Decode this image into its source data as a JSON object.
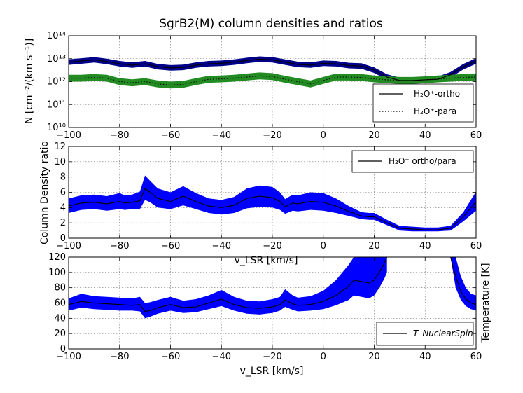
{
  "chart_data": [
    {
      "type": "line",
      "title": "SgrB2(M) column densities and ratios",
      "xlabel": "",
      "ylabel": "N [cm⁻²/(km s⁻¹)]",
      "yscale": "log",
      "xlim": [
        -100,
        60
      ],
      "ylim_exponents": [
        10,
        14
      ],
      "xticks": [
        -100,
        -80,
        -60,
        -40,
        -20,
        0,
        20,
        40,
        60
      ],
      "yticks": [
        "10¹⁰",
        "10¹¹",
        "10¹²",
        "10¹³",
        "10¹⁴"
      ],
      "legend_position": "lower-right",
      "series": [
        {
          "name": "H₂O⁺-ortho",
          "line_style": "solid",
          "band_color": "#00008b",
          "band_width_dex": 0.12,
          "x": [
            -100,
            -95,
            -90,
            -85,
            -80,
            -75,
            -70,
            -65,
            -60,
            -55,
            -50,
            -45,
            -40,
            -35,
            -30,
            -25,
            -20,
            -15,
            -10,
            -5,
            0,
            5,
            10,
            15,
            20,
            25,
            30,
            35,
            40,
            45,
            50,
            55,
            60
          ],
          "log10_values": [
            12.85,
            12.9,
            12.95,
            12.88,
            12.78,
            12.72,
            12.78,
            12.65,
            12.6,
            12.62,
            12.72,
            12.78,
            12.8,
            12.85,
            12.92,
            12.98,
            12.95,
            12.85,
            12.75,
            12.72,
            12.8,
            12.78,
            12.7,
            12.68,
            12.5,
            12.2,
            12.05,
            12.05,
            12.08,
            12.1,
            12.3,
            12.65,
            12.9
          ]
        },
        {
          "name": "H₂O⁺-para",
          "line_style": "dotted",
          "band_color": "#228b22",
          "band_width_dex": 0.15,
          "x": [
            -100,
            -95,
            -90,
            -85,
            -80,
            -75,
            -70,
            -65,
            -60,
            -55,
            -50,
            -45,
            -40,
            -35,
            -30,
            -25,
            -20,
            -15,
            -10,
            -5,
            0,
            5,
            10,
            15,
            20,
            25,
            30,
            35,
            40,
            45,
            50,
            55,
            60
          ],
          "log10_values": [
            12.15,
            12.15,
            12.18,
            12.15,
            12.0,
            11.95,
            12.0,
            11.9,
            11.85,
            11.88,
            12.0,
            12.1,
            12.12,
            12.15,
            12.2,
            12.25,
            12.22,
            12.1,
            12.0,
            11.9,
            12.05,
            12.2,
            12.2,
            12.18,
            12.12,
            12.08,
            12.05,
            12.05,
            12.08,
            12.12,
            12.15,
            12.18,
            12.2
          ]
        }
      ]
    },
    {
      "type": "line",
      "title": "",
      "xlabel": "v_LSR [km/s]",
      "ylabel": "Column Density ratio",
      "xlim": [
        -100,
        60
      ],
      "ylim": [
        0,
        12
      ],
      "xticks": [
        -100,
        -80,
        -60,
        -40,
        -20,
        0,
        20,
        40,
        60
      ],
      "yticks": [
        0,
        2,
        4,
        6,
        8,
        10,
        12
      ],
      "legend_position": "top-right",
      "series": [
        {
          "name": "H₂O⁺ ortho/para",
          "band_color": "#0000ff",
          "x": [
            -100,
            -95,
            -90,
            -85,
            -80,
            -78,
            -75,
            -72,
            -70,
            -68,
            -65,
            -60,
            -55,
            -50,
            -45,
            -40,
            -35,
            -30,
            -25,
            -20,
            -17,
            -15,
            -12,
            -10,
            -5,
            0,
            5,
            10,
            15,
            18,
            20,
            25,
            30,
            35,
            40,
            45,
            50,
            55,
            60
          ],
          "values": [
            4.2,
            4.6,
            4.7,
            4.5,
            4.8,
            4.6,
            4.7,
            4.9,
            6.5,
            6.0,
            5.2,
            4.8,
            5.5,
            4.8,
            4.2,
            4.0,
            4.3,
            5.2,
            5.5,
            5.3,
            4.8,
            4.1,
            4.6,
            4.5,
            4.8,
            4.7,
            4.2,
            3.5,
            2.9,
            2.8,
            2.8,
            2.0,
            1.3,
            1.2,
            1.1,
            1.1,
            1.3,
            2.8,
            4.8
          ],
          "lower": [
            3.3,
            3.7,
            3.8,
            3.6,
            3.8,
            3.7,
            3.8,
            3.8,
            5.0,
            4.7,
            4.0,
            3.8,
            4.3,
            3.8,
            3.3,
            3.1,
            3.3,
            3.9,
            4.1,
            4.0,
            3.7,
            3.2,
            3.6,
            3.5,
            3.7,
            3.6,
            3.3,
            2.9,
            2.5,
            2.4,
            2.4,
            1.7,
            1.0,
            0.9,
            0.9,
            0.9,
            1.0,
            2.2,
            3.6
          ],
          "upper": [
            5.2,
            5.6,
            5.7,
            5.5,
            5.9,
            5.6,
            5.7,
            6.1,
            8.2,
            7.5,
            6.5,
            6.0,
            6.8,
            5.9,
            5.2,
            5.0,
            5.4,
            6.5,
            6.9,
            6.7,
            6.0,
            5.1,
            5.7,
            5.6,
            6.0,
            5.9,
            5.2,
            4.2,
            3.4,
            3.3,
            3.3,
            2.4,
            1.6,
            1.5,
            1.4,
            1.4,
            1.6,
            3.4,
            6.1
          ]
        }
      ]
    },
    {
      "type": "line",
      "title": "",
      "xlabel": "v_LSR [km/s]",
      "ylabel": "Temperature [K]",
      "ylabel_side": "right",
      "xlim": [
        -100,
        60
      ],
      "ylim": [
        0,
        120
      ],
      "xticks": [
        -100,
        -80,
        -60,
        -40,
        -20,
        0,
        20,
        40,
        60
      ],
      "yticks": [
        0,
        20,
        40,
        60,
        80,
        100,
        120
      ],
      "legend_position": "lower-right",
      "series": [
        {
          "name": "T_NuclearSpin",
          "band_color": "#0000ff",
          "segments": [
            {
              "x": [
                -100,
                -95,
                -90,
                -85,
                -80,
                -75,
                -72,
                -70,
                -68,
                -65,
                -60,
                -55,
                -50,
                -45,
                -40,
                -35,
                -30,
                -25,
                -20,
                -17,
                -15,
                -12,
                -10,
                -5,
                0,
                5,
                10,
                12,
                15,
                18,
                20,
                22,
                24,
                25
              ],
              "values": [
                58,
                62,
                60,
                59,
                58,
                57,
                58,
                49,
                50,
                54,
                58,
                54,
                55,
                60,
                65,
                58,
                54,
                53,
                55,
                58,
                64,
                59,
                57,
                58,
                62,
                70,
                82,
                90,
                88,
                86,
                90,
                100,
                112,
                120
              ],
              "lower": [
                50,
                54,
                52,
                51,
                50,
                50,
                49,
                40,
                42,
                46,
                50,
                47,
                48,
                52,
                56,
                50,
                46,
                45,
                47,
                50,
                55,
                51,
                49,
                50,
                52,
                57,
                64,
                70,
                68,
                66,
                70,
                80,
                92,
                100
              ],
              "upper": [
                66,
                72,
                69,
                68,
                67,
                66,
                68,
                60,
                61,
                64,
                68,
                63,
                65,
                70,
                77,
                68,
                63,
                62,
                65,
                68,
                78,
                70,
                67,
                69,
                76,
                90,
                110,
                120,
                120,
                120,
                120,
                120,
                120,
                120
              ]
            },
            {
              "x": [
                50,
                52,
                54,
                56,
                58,
                60
              ],
              "values": [
                120,
                95,
                75,
                65,
                60,
                58
              ],
              "lower": [
                120,
                80,
                64,
                56,
                52,
                50
              ],
              "upper": [
                120,
                120,
                95,
                80,
                72,
                70
              ]
            }
          ]
        }
      ]
    }
  ]
}
